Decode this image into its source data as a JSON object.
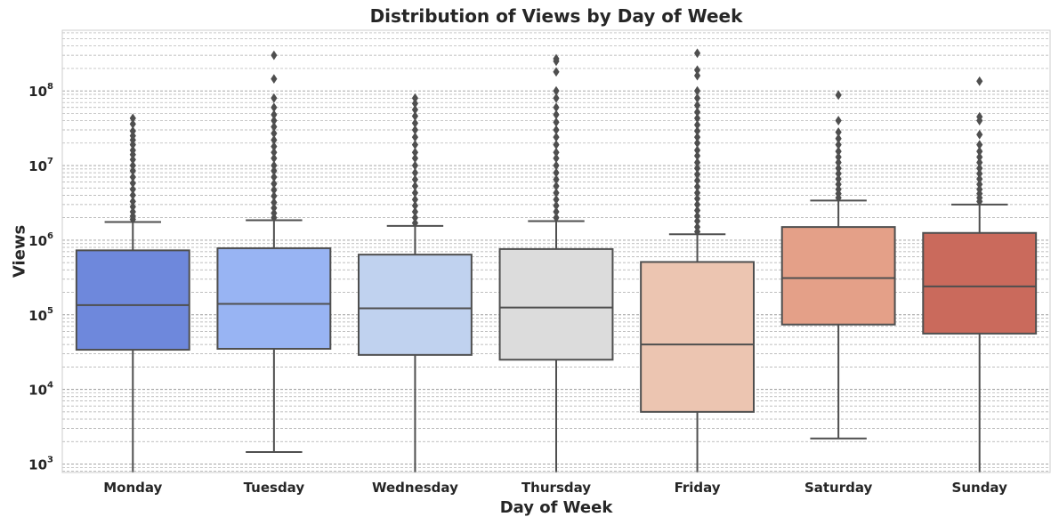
{
  "chart_data": {
    "type": "box",
    "title": "Distribution of Views by Day of Week",
    "xlabel": "Day of Week",
    "ylabel": "Views",
    "yscale": "log",
    "ylim": [
      770,
      650000000
    ],
    "yticks": [
      {
        "base": "10",
        "exp": "3"
      },
      {
        "base": "10",
        "exp": "4"
      },
      {
        "base": "10",
        "exp": "5"
      },
      {
        "base": "10",
        "exp": "6"
      },
      {
        "base": "10",
        "exp": "7"
      },
      {
        "base": "10",
        "exp": "8"
      }
    ],
    "grid": "dashed, major and minor on y-axis",
    "categories": [
      "Monday",
      "Tuesday",
      "Wednesday",
      "Thursday",
      "Friday",
      "Saturday",
      "Sunday"
    ],
    "boxes": [
      {
        "label": "Monday",
        "q1": 34000,
        "median": 135000,
        "q3": 730000,
        "whisker_low": 770,
        "whisker_high": 1750000,
        "color": "#6e88dc",
        "outliers": [
          1900000,
          2100000,
          2400000,
          2800000,
          3300000,
          4000000,
          4800000,
          5800000,
          7000000,
          8500000,
          10000000,
          12000000,
          14000000,
          16000000,
          19000000,
          22000000,
          25000000,
          29000000,
          36000000,
          43000000
        ]
      },
      {
        "label": "Tuesday",
        "q1": 35000,
        "median": 140000,
        "q3": 780000,
        "whisker_low": 1450,
        "whisker_high": 1850000,
        "color": "#98b4f3",
        "outliers": [
          2000000,
          2300000,
          2700000,
          3200000,
          3900000,
          4700000,
          5700000,
          7000000,
          8500000,
          10000000,
          12500000,
          15000000,
          18000000,
          22000000,
          27000000,
          33000000,
          40000000,
          48000000,
          60000000,
          80000000,
          145000000,
          300000000
        ]
      },
      {
        "label": "Wednesday",
        "q1": 29000,
        "median": 122000,
        "q3": 640000,
        "whisker_low": 770,
        "whisker_high": 1550000,
        "color": "#c0d2ef",
        "outliers": [
          1700000,
          2000000,
          2400000,
          2900000,
          3500000,
          4300000,
          5300000,
          6500000,
          8000000,
          10000000,
          12500000,
          15000000,
          19000000,
          24000000,
          30000000,
          37000000,
          46000000,
          56000000,
          68000000,
          80000000
        ]
      },
      {
        "label": "Thursday",
        "q1": 25000,
        "median": 125000,
        "q3": 760000,
        "whisker_low": 770,
        "whisker_high": 1800000,
        "color": "#dcdcdc",
        "outliers": [
          2000000,
          2400000,
          2900000,
          3500000,
          4300000,
          5300000,
          6500000,
          8000000,
          10000000,
          12500000,
          15000000,
          19000000,
          24000000,
          30000000,
          38000000,
          48000000,
          60000000,
          80000000,
          100000000,
          180000000,
          250000000,
          270000000
        ]
      },
      {
        "label": "Friday",
        "q1": 5000,
        "median": 40000,
        "q3": 510000,
        "whisker_low": 770,
        "whisker_high": 1200000,
        "color": "#ecc5b1",
        "outliers": [
          1300000,
          1500000,
          1800000,
          2100000,
          2500000,
          3000000,
          3600000,
          4300000,
          5200000,
          6300000,
          7600000,
          9200000,
          11000000,
          13500000,
          16000000,
          20000000,
          24000000,
          29000000,
          35000000,
          43000000,
          52000000,
          64000000,
          80000000,
          100000000,
          160000000,
          190000000,
          320000000
        ]
      },
      {
        "label": "Saturday",
        "q1": 74000,
        "median": 310000,
        "q3": 1500000,
        "whisker_low": 2200,
        "whisker_high": 3400000,
        "color": "#e4a088",
        "outliers": [
          3700000,
          4200000,
          4800000,
          5600000,
          6600000,
          7800000,
          9200000,
          11000000,
          13000000,
          15500000,
          19000000,
          23000000,
          28000000,
          40000000,
          88000000
        ]
      },
      {
        "label": "Sunday",
        "q1": 56000,
        "median": 240000,
        "q3": 1250000,
        "whisker_low": 770,
        "whisker_high": 3000000,
        "color": "#ca6a5c",
        "outliers": [
          3300000,
          3700000,
          4200000,
          4800000,
          5600000,
          6600000,
          7800000,
          9200000,
          11000000,
          13000000,
          15500000,
          19000000,
          26000000,
          40000000,
          45000000,
          135000000
        ]
      }
    ]
  }
}
